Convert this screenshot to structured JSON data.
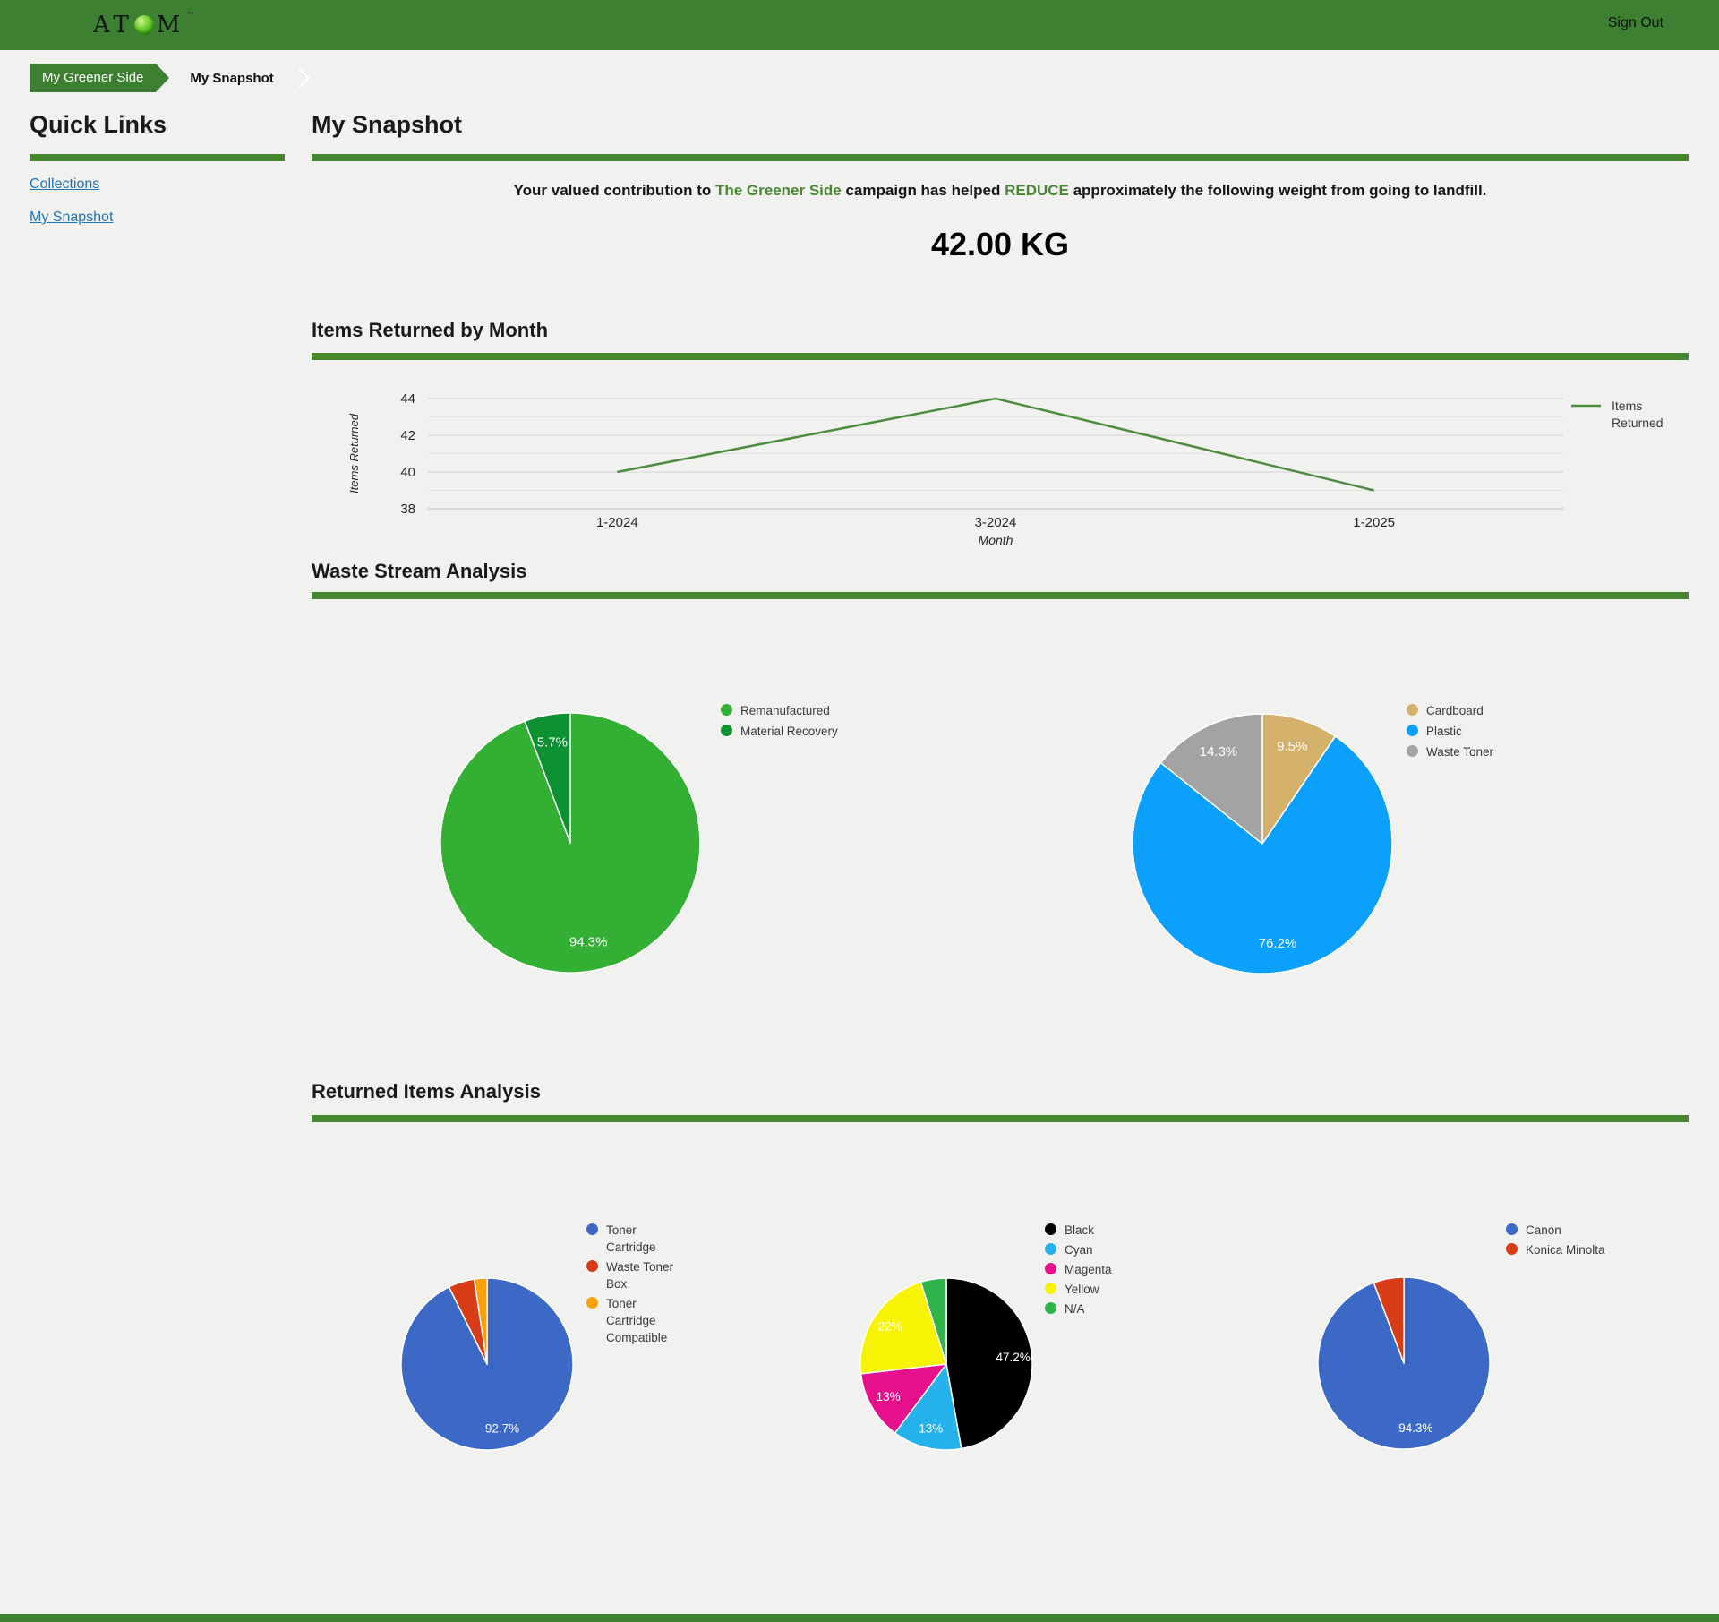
{
  "colors": {
    "header_green": "#3E8031",
    "accent_bar_green": "#44872F",
    "text_green": "#4A8735",
    "link_blue": "#2374B5",
    "background": "#F1F1F0"
  },
  "header": {
    "logo_pre": "AT",
    "logo_post": "M",
    "logo_tm": "™",
    "sign_out": "Sign Out"
  },
  "breadcrumb": {
    "root": "My Greener Side",
    "current": "My Snapshot"
  },
  "sidebar": {
    "title": "Quick Links",
    "links": [
      {
        "label": "Collections"
      },
      {
        "label": "My Snapshot"
      }
    ]
  },
  "main": {
    "title": "My Snapshot",
    "message": {
      "part1": "Your valued contribution to ",
      "highlight1": "The Greener Side",
      "part2": " campaign has helped ",
      "highlight2": "REDUCE",
      "part3": " approximately the following weight from going to landfill."
    },
    "weight": "42.00 KG"
  },
  "sections": {
    "items_returned": {
      "title": "Items Returned by Month"
    },
    "waste_stream": {
      "title": "Waste Stream Analysis"
    },
    "returned_items": {
      "title": "Returned Items Analysis"
    }
  },
  "chart_data": [
    {
      "type": "line",
      "title": "Items Returned by Month",
      "x": [
        "1-2024",
        "3-2024",
        "1-2025"
      ],
      "series": [
        {
          "name": "Items Returned",
          "values": [
            40,
            44,
            39
          ],
          "color": "#4C8C3F"
        }
      ],
      "xlabel": "Month",
      "ylabel": "Items Returned",
      "ylim": [
        38,
        44.5
      ],
      "yticks": [
        38,
        40,
        42,
        44
      ],
      "grid": true,
      "legend_position": "right"
    },
    {
      "type": "pie",
      "title": "Waste Stream Analysis - Disposition",
      "slices": [
        {
          "label": "Remanufactured",
          "value": 94.3,
          "color": "#33AF33",
          "text": "94.3%"
        },
        {
          "label": "Material Recovery",
          "value": 5.7,
          "color": "#0B9132",
          "text": "5.7%"
        }
      ]
    },
    {
      "type": "pie",
      "title": "Waste Stream Analysis - Material",
      "slices": [
        {
          "label": "Cardboard",
          "value": 9.5,
          "color": "#D3B16B",
          "text": "9.5%"
        },
        {
          "label": "Plastic",
          "value": 76.2,
          "color": "#0AA0FC",
          "text": "76.2%"
        },
        {
          "label": "Waste Toner",
          "value": 14.3,
          "color": "#A3A3A3",
          "text": "14.3%"
        }
      ]
    },
    {
      "type": "pie",
      "title": "Returned Items Analysis - Item Type",
      "slices": [
        {
          "label": "Toner Cartridge",
          "value": 92.7,
          "color": "#3D69C6",
          "text": "92.7%"
        },
        {
          "label": "Waste Toner Box",
          "value": 4.9,
          "color": "#D83B16",
          "text": ""
        },
        {
          "label": "Toner Cartridge Compatible",
          "value": 2.4,
          "color": "#F9A106",
          "text": ""
        }
      ]
    },
    {
      "type": "pie",
      "title": "Returned Items Analysis - Colour",
      "slices": [
        {
          "label": "Black",
          "value": 47.2,
          "color": "#000000",
          "text": "47.2%"
        },
        {
          "label": "Cyan",
          "value": 13,
          "color": "#25B2EB",
          "text": "13%"
        },
        {
          "label": "Magenta",
          "value": 13,
          "color": "#E60F8C",
          "text": "13%"
        },
        {
          "label": "Yellow",
          "value": 22,
          "color": "#F8F303",
          "text": "22%"
        },
        {
          "label": "N/A",
          "value": 4.8,
          "color": "#2EB44A",
          "text": ""
        }
      ]
    },
    {
      "type": "pie",
      "title": "Returned Items Analysis - Brand",
      "slices": [
        {
          "label": "Canon",
          "value": 94.3,
          "color": "#3D69C6",
          "text": "94.3%"
        },
        {
          "label": "Konica Minolta",
          "value": 5.7,
          "color": "#D83B16",
          "text": ""
        }
      ]
    }
  ]
}
